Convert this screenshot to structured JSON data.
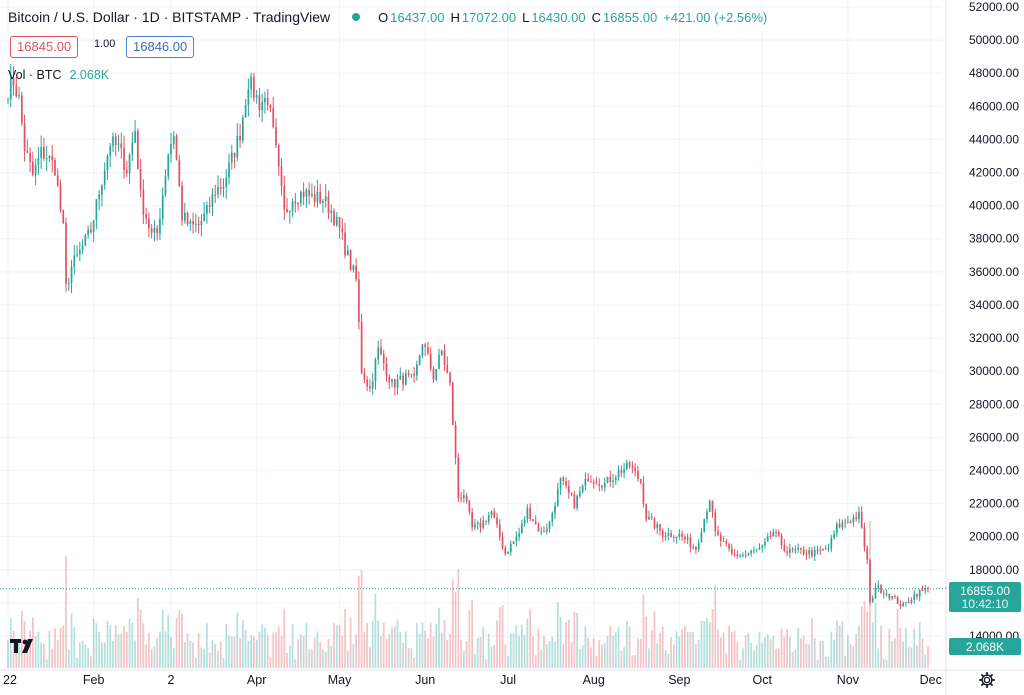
{
  "header": {
    "title": "Bitcoin / U.S. Dollar · 1D · BITSTAMP · TradingView",
    "open_label": "O",
    "open": "16437.00",
    "high_label": "H",
    "high": "17072.00",
    "low_label": "L",
    "low": "16430.00",
    "close_label": "C",
    "close": "16855.00",
    "change": "+421.00 (+2.56%)"
  },
  "trade": {
    "sell": "16845.00",
    "spread": "1.00",
    "buy": "16846.00"
  },
  "volume_legend": {
    "label": "Vol · BTC",
    "value": "2.068K"
  },
  "price_label": {
    "price": "16855.00",
    "countdown": "10:42:10"
  },
  "volume_label": "2.068K",
  "colors": {
    "up": "#26a69a",
    "down": "#e05260",
    "grid": "#f0f3fa",
    "axis_text": "#131722"
  },
  "icons": {
    "logo": "tradingview-logo-icon",
    "settings": "gear-icon"
  },
  "chart_data": {
    "type": "candlestick",
    "title": "Bitcoin / U.S. Dollar · 1D · BITSTAMP · TradingView",
    "y_ticks": [
      14000,
      16000,
      18000,
      20000,
      22000,
      24000,
      26000,
      28000,
      30000,
      32000,
      34000,
      36000,
      38000,
      40000,
      42000,
      44000,
      46000,
      48000,
      50000,
      52000
    ],
    "y_tick_labels": [
      "14000.00",
      "16000.00",
      "18000.00",
      "20000.00",
      "22000.00",
      "24000.00",
      "26000.00",
      "28000.00",
      "30000.00",
      "32000.00",
      "34000.00",
      "36000.00",
      "38000.00",
      "40000.00",
      "42000.00",
      "44000.00",
      "46000.00",
      "48000.00",
      "50000.00",
      "52000.00"
    ],
    "x_labels": [
      {
        "label": "22",
        "date": "2022-01-01"
      },
      {
        "label": "Feb",
        "date": "2022-02-01"
      },
      {
        "label": "2",
        "date": "2022-03-01"
      },
      {
        "label": "Apr",
        "date": "2022-04-01"
      },
      {
        "label": "May",
        "date": "2022-05-01"
      },
      {
        "label": "Jun",
        "date": "2022-06-01"
      },
      {
        "label": "Jul",
        "date": "2022-07-01"
      },
      {
        "label": "Aug",
        "date": "2022-08-01"
      },
      {
        "label": "Sep",
        "date": "2022-09-01"
      },
      {
        "label": "Oct",
        "date": "2022-10-01"
      },
      {
        "label": "Nov",
        "date": "2022-11-01"
      },
      {
        "label": "Dec",
        "date": "2022-12-01"
      }
    ],
    "date_range": [
      "2022-01-01",
      "2022-11-30"
    ],
    "last_price": 16855,
    "anchors": [
      [
        "2022-01-01",
        47000
      ],
      [
        "2022-01-03",
        47500
      ],
      [
        "2022-01-05",
        46400
      ],
      [
        "2022-01-07",
        43500
      ],
      [
        "2022-01-10",
        41800
      ],
      [
        "2022-01-13",
        43200
      ],
      [
        "2022-01-15",
        43000
      ],
      [
        "2022-01-18",
        42300
      ],
      [
        "2022-01-21",
        38500
      ],
      [
        "2022-01-22",
        35000
      ],
      [
        "2022-01-24",
        36300
      ],
      [
        "2022-01-27",
        37200
      ],
      [
        "2022-01-31",
        38500
      ],
      [
        "2022-02-04",
        41600
      ],
      [
        "2022-02-07",
        43800
      ],
      [
        "2022-02-10",
        43500
      ],
      [
        "2022-02-13",
        42200
      ],
      [
        "2022-02-16",
        44600
      ],
      [
        "2022-02-18",
        40500
      ],
      [
        "2022-02-22",
        38200
      ],
      [
        "2022-02-24",
        38300
      ],
      [
        "2022-02-28",
        43200
      ],
      [
        "2022-03-02",
        44400
      ],
      [
        "2022-03-05",
        39400
      ],
      [
        "2022-03-08",
        38700
      ],
      [
        "2022-03-11",
        38800
      ],
      [
        "2022-03-14",
        39600
      ],
      [
        "2022-03-17",
        40900
      ],
      [
        "2022-03-20",
        41300
      ],
      [
        "2022-03-23",
        42800
      ],
      [
        "2022-03-26",
        44400
      ],
      [
        "2022-03-29",
        47500
      ],
      [
        "2022-04-02",
        46200
      ],
      [
        "2022-04-05",
        46500
      ],
      [
        "2022-04-08",
        43200
      ],
      [
        "2022-04-11",
        39500
      ],
      [
        "2022-04-14",
        40500
      ],
      [
        "2022-04-18",
        40800
      ],
      [
        "2022-04-21",
        40500
      ],
      [
        "2022-04-25",
        40400
      ],
      [
        "2022-04-28",
        39700
      ],
      [
        "2022-05-01",
        38500
      ],
      [
        "2022-05-05",
        36400
      ],
      [
        "2022-05-07",
        35500
      ],
      [
        "2022-05-09",
        30100
      ],
      [
        "2022-05-12",
        28900
      ],
      [
        "2022-05-15",
        31300
      ],
      [
        "2022-05-20",
        29200
      ],
      [
        "2022-05-25",
        29600
      ],
      [
        "2022-05-28",
        29400
      ],
      [
        "2022-05-31",
        31800
      ],
      [
        "2022-06-04",
        29700
      ],
      [
        "2022-06-07",
        31200
      ],
      [
        "2022-06-10",
        29100
      ],
      [
        "2022-06-13",
        22400
      ],
      [
        "2022-06-15",
        22600
      ],
      [
        "2022-06-18",
        20500
      ],
      [
        "2022-06-21",
        20700
      ],
      [
        "2022-06-25",
        21500
      ],
      [
        "2022-06-30",
        19000
      ],
      [
        "2022-07-05",
        20200
      ],
      [
        "2022-07-08",
        21600
      ],
      [
        "2022-07-13",
        20200
      ],
      [
        "2022-07-16",
        20800
      ],
      [
        "2022-07-20",
        23400
      ],
      [
        "2022-07-25",
        22000
      ],
      [
        "2022-07-30",
        23600
      ],
      [
        "2022-08-05",
        23200
      ],
      [
        "2022-08-10",
        23900
      ],
      [
        "2022-08-14",
        24300
      ],
      [
        "2022-08-18",
        23300
      ],
      [
        "2022-08-20",
        21200
      ],
      [
        "2022-08-26",
        20200
      ],
      [
        "2022-09-01",
        20100
      ],
      [
        "2022-09-07",
        19300
      ],
      [
        "2022-09-12",
        22300
      ],
      [
        "2022-09-14",
        20200
      ],
      [
        "2022-09-20",
        18900
      ],
      [
        "2022-09-25",
        18900
      ],
      [
        "2022-10-01",
        19300
      ],
      [
        "2022-10-05",
        20300
      ],
      [
        "2022-10-10",
        19100
      ],
      [
        "2022-10-15",
        19100
      ],
      [
        "2022-10-20",
        19000
      ],
      [
        "2022-10-25",
        19300
      ],
      [
        "2022-10-28",
        20600
      ],
      [
        "2022-11-05",
        21300
      ],
      [
        "2022-11-08",
        18500
      ],
      [
        "2022-11-09",
        15900
      ],
      [
        "2022-11-11",
        17000
      ],
      [
        "2022-11-15",
        16600
      ],
      [
        "2022-11-21",
        15800
      ],
      [
        "2022-11-25",
        16500
      ],
      [
        "2022-11-30",
        16855
      ]
    ]
  }
}
